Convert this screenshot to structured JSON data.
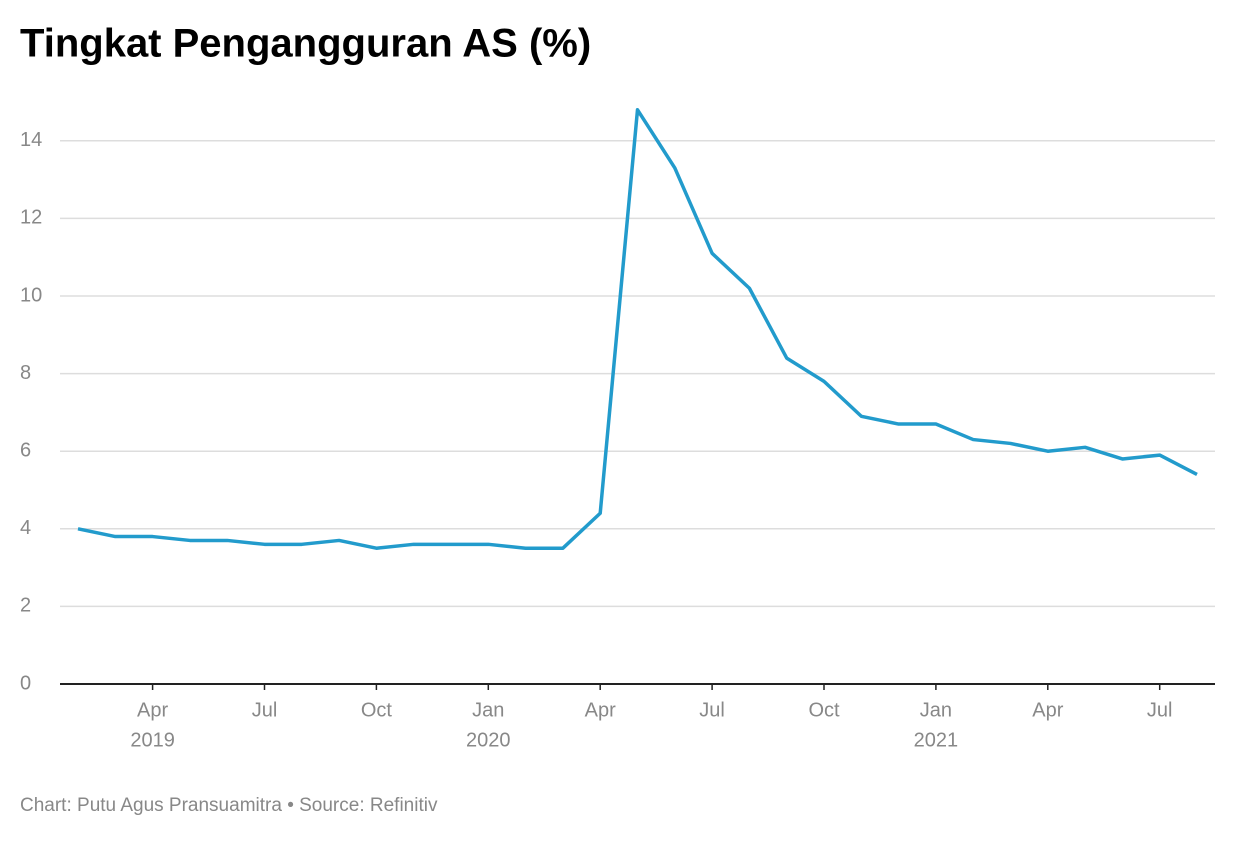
{
  "chart_data": {
    "type": "line",
    "title": "Tingkat Pengangguran AS (%)",
    "source": "Chart: Putu Agus Pransuamitra • Source: Refinitiv",
    "x": [
      "2019-02",
      "2019-03",
      "2019-04",
      "2019-05",
      "2019-06",
      "2019-07",
      "2019-08",
      "2019-09",
      "2019-10",
      "2019-11",
      "2019-12",
      "2020-01",
      "2020-02",
      "2020-03",
      "2020-04",
      "2020-05",
      "2020-06",
      "2020-07",
      "2020-08",
      "2020-09",
      "2020-10",
      "2020-11",
      "2020-12",
      "2021-01",
      "2021-02",
      "2021-03",
      "2021-04",
      "2021-05",
      "2021-06",
      "2021-07",
      "2021-08"
    ],
    "series": [
      {
        "color": "#229bcc",
        "values": [
          4.0,
          3.8,
          3.8,
          3.7,
          3.7,
          3.6,
          3.6,
          3.7,
          3.5,
          3.6,
          3.6,
          3.6,
          3.5,
          3.5,
          4.4,
          14.8,
          13.3,
          11.1,
          10.2,
          8.4,
          7.8,
          6.9,
          6.7,
          6.7,
          6.3,
          6.2,
          6.0,
          6.1,
          5.8,
          5.9,
          5.4
        ]
      }
    ],
    "xlim": [
      "2019-02",
      "2021-08"
    ],
    "xticks": [
      {
        "value": "2019-04",
        "label": "Apr"
      },
      {
        "value": "2019-07",
        "label": "Jul"
      },
      {
        "value": "2019-10",
        "label": "Oct"
      },
      {
        "value": "2020-01",
        "label": "Jan"
      },
      {
        "value": "2020-04",
        "label": "Apr"
      },
      {
        "value": "2020-07",
        "label": "Jul"
      },
      {
        "value": "2020-10",
        "label": "Oct"
      },
      {
        "value": "2021-01",
        "label": "Jan"
      },
      {
        "value": "2021-04",
        "label": "Apr"
      },
      {
        "value": "2021-07",
        "label": "Jul"
      }
    ],
    "xtick_years": [
      {
        "value": "2019-04",
        "label": "2019"
      },
      {
        "value": "2020-01",
        "label": "2020"
      },
      {
        "value": "2021-01",
        "label": "2021"
      }
    ],
    "ylim": [
      0,
      15
    ],
    "yticks": [
      0,
      2,
      4,
      6,
      8,
      10,
      12,
      14
    ],
    "grid": true
  }
}
